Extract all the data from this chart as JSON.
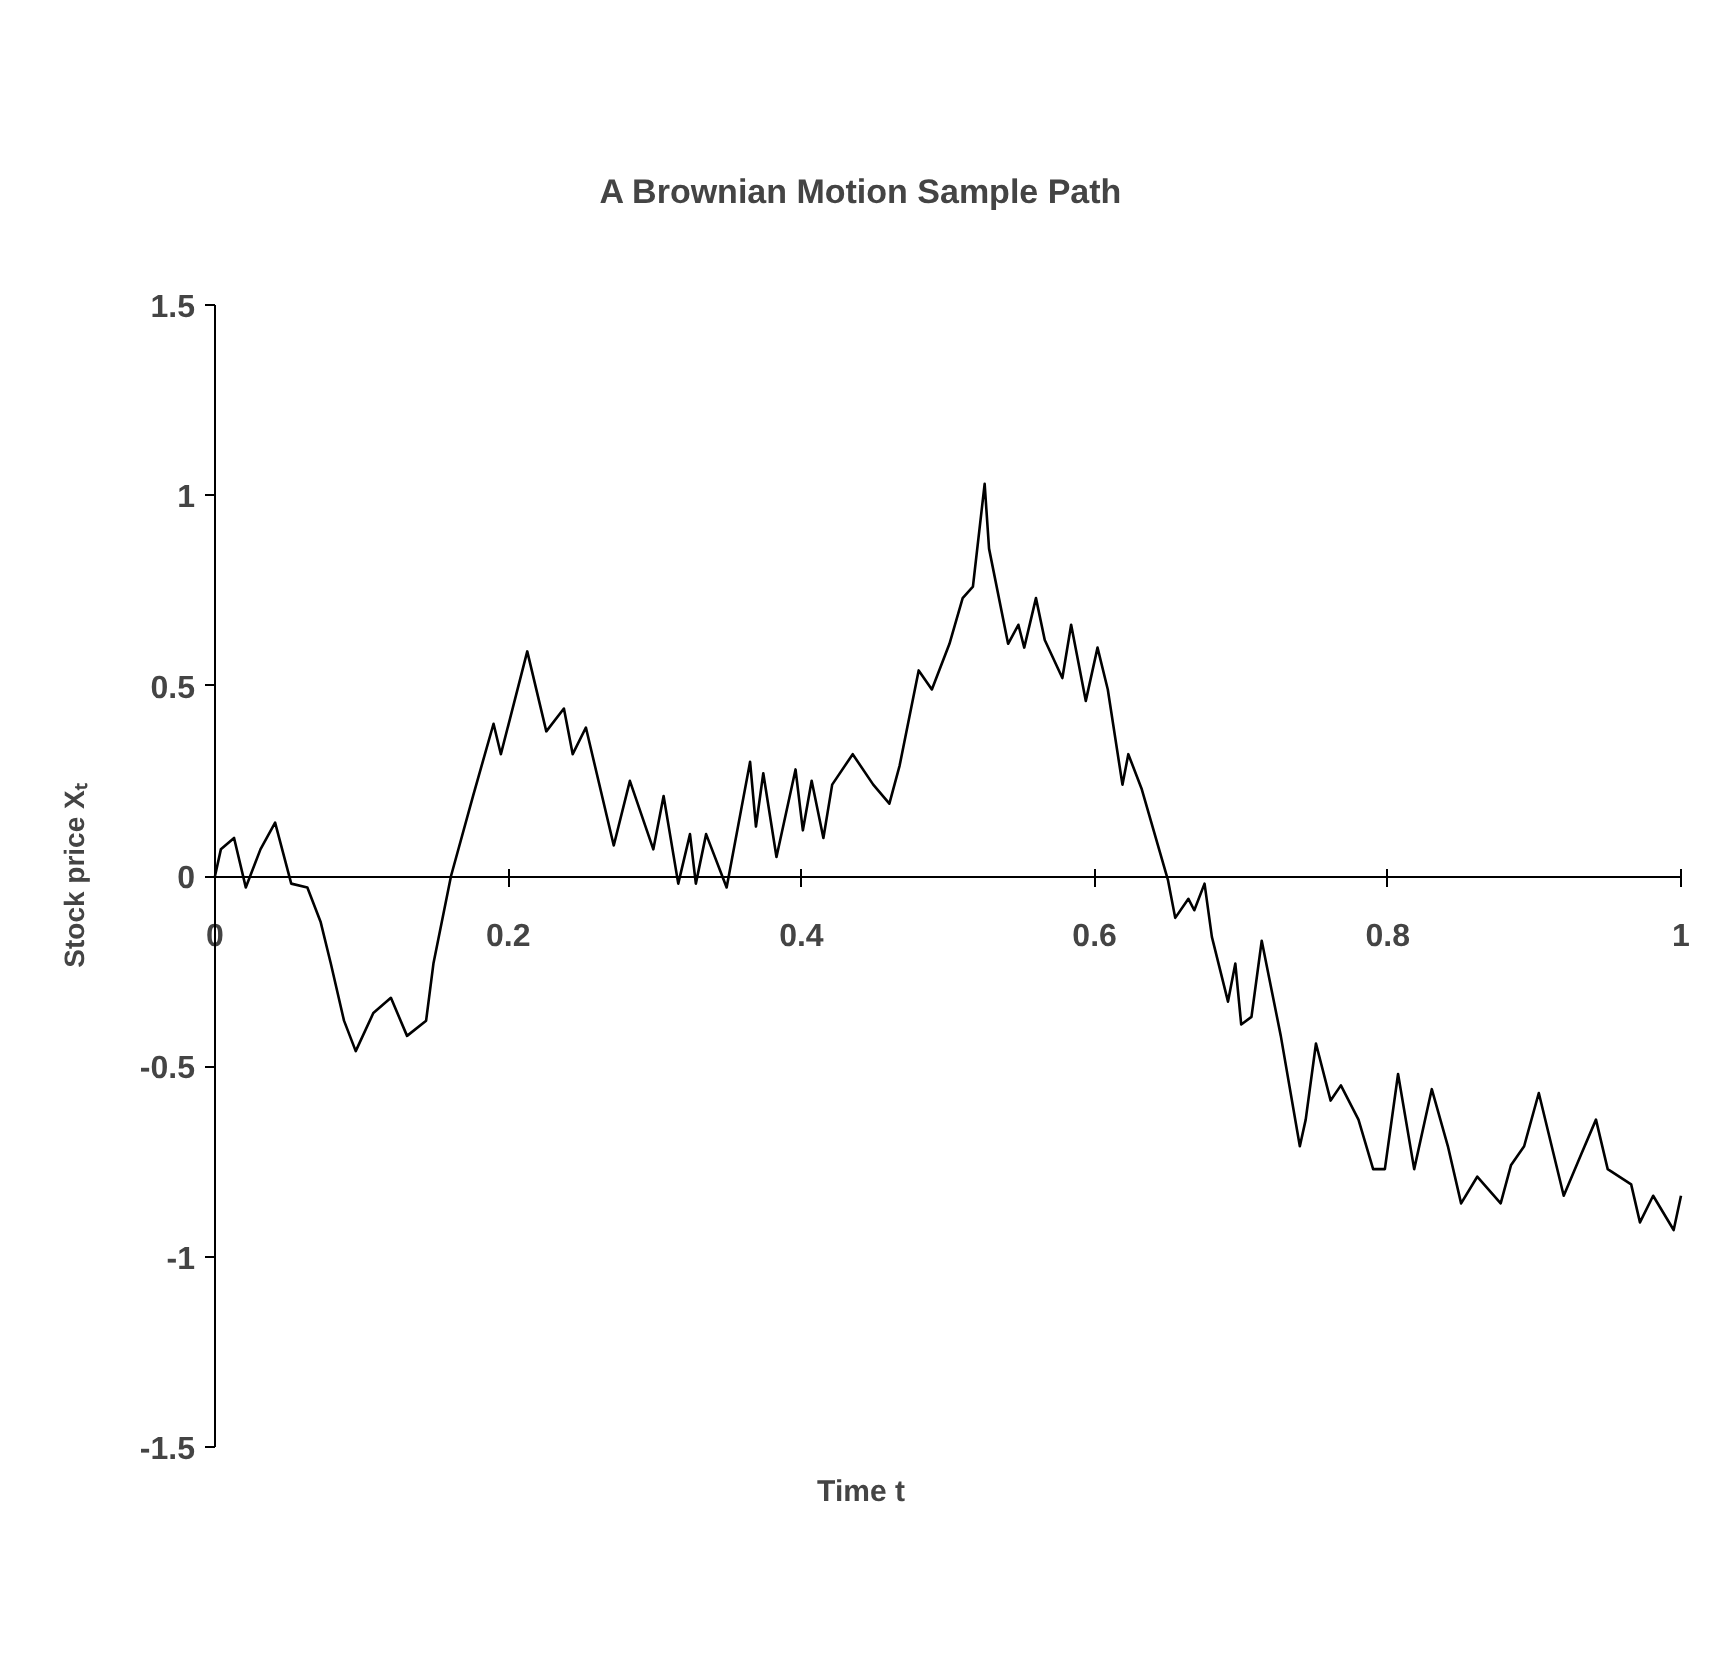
{
  "chart_data": {
    "type": "line",
    "title": "A Brownian Motion Sample Path",
    "xlabel": "Time t",
    "ylabel": "Stock price Xₜ",
    "xlim": [
      0,
      1
    ],
    "xticks": [
      0,
      0.2,
      0.4,
      0.6,
      0.8,
      1
    ],
    "ylim": [
      -1.5,
      1.5
    ],
    "yticks": [
      -1.5,
      -1,
      -0.5,
      0,
      0.5,
      1,
      1.5
    ],
    "grid": false,
    "marker": "none",
    "line_style": "solid",
    "series": [
      {
        "color": "#000000",
        "x": [
          0,
          0.004,
          0.013,
          0.021,
          0.031,
          0.041,
          0.052,
          0.063,
          0.072,
          0.079,
          0.088,
          0.096,
          0.108,
          0.12,
          0.131,
          0.144,
          0.149,
          0.161,
          0.176,
          0.19,
          0.195,
          0.213,
          0.226,
          0.238,
          0.244,
          0.253,
          0.272,
          0.283,
          0.299,
          0.306,
          0.316,
          0.324,
          0.328,
          0.335,
          0.349,
          0.365,
          0.369,
          0.374,
          0.383,
          0.396,
          0.401,
          0.407,
          0.415,
          0.421,
          0.435,
          0.449,
          0.46,
          0.467,
          0.48,
          0.489,
          0.501,
          0.51,
          0.517,
          0.525,
          0.528,
          0.541,
          0.548,
          0.552,
          0.56,
          0.566,
          0.578,
          0.584,
          0.594,
          0.602,
          0.609,
          0.619,
          0.623,
          0.632,
          0.644,
          0.65,
          0.655,
          0.664,
          0.668,
          0.675,
          0.68,
          0.691,
          0.696,
          0.7,
          0.707,
          0.714,
          0.727,
          0.74,
          0.744,
          0.751,
          0.761,
          0.768,
          0.78,
          0.79,
          0.798,
          0.807,
          0.818,
          0.83,
          0.841,
          0.85,
          0.861,
          0.877,
          0.884,
          0.893,
          0.903,
          0.92,
          0.932,
          0.942,
          0.95,
          0.966,
          0.972,
          0.981,
          0.995,
          1
        ],
        "values": [
          0,
          0.07,
          0.1,
          -0.03,
          0.07,
          0.14,
          -0.02,
          -0.03,
          -0.12,
          -0.23,
          -0.38,
          -0.46,
          -0.36,
          -0.32,
          -0.42,
          -0.38,
          -0.23,
          0,
          0.21,
          0.4,
          0.32,
          0.59,
          0.38,
          0.44,
          0.32,
          0.39,
          0.08,
          0.25,
          0.07,
          0.21,
          -0.02,
          0.11,
          -0.02,
          0.11,
          -0.03,
          0.3,
          0.13,
          0.27,
          0.05,
          0.28,
          0.12,
          0.25,
          0.1,
          0.24,
          0.32,
          0.24,
          0.19,
          0.29,
          0.54,
          0.49,
          0.61,
          0.73,
          0.76,
          1.03,
          0.86,
          0.61,
          0.66,
          0.6,
          0.73,
          0.62,
          0.52,
          0.66,
          0.46,
          0.6,
          0.49,
          0.24,
          0.32,
          0.23,
          0.07,
          -0.01,
          -0.11,
          -0.06,
          -0.09,
          -0.02,
          -0.16,
          -0.33,
          -0.23,
          -0.39,
          -0.37,
          -0.17,
          -0.42,
          -0.71,
          -0.64,
          -0.44,
          -0.59,
          -0.55,
          -0.64,
          -0.77,
          -0.77,
          -0.52,
          -0.77,
          -0.56,
          -0.71,
          -0.86,
          -0.79,
          -0.86,
          -0.76,
          -0.71,
          -0.57,
          -0.84,
          -0.73,
          -0.64,
          -0.77,
          -0.81,
          -0.91,
          -0.84,
          -0.93,
          -0.84
        ]
      }
    ]
  }
}
